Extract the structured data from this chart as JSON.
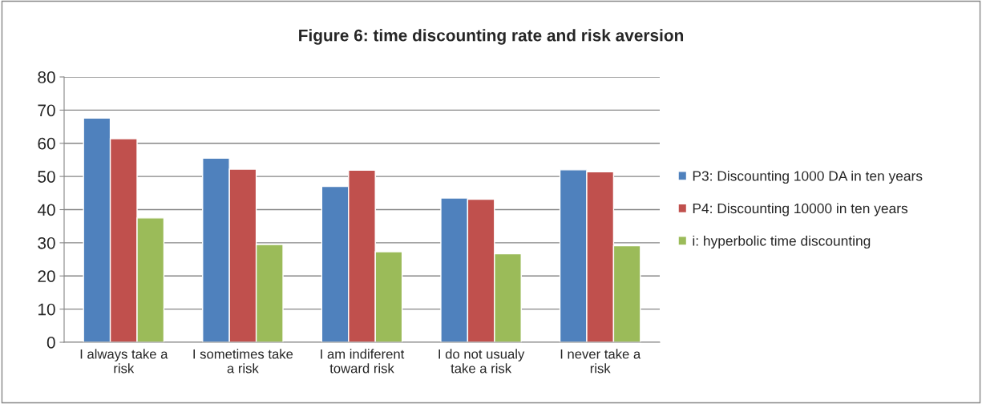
{
  "chart_data": {
    "type": "bar",
    "title": "Figure 6: time discounting rate and risk aversion",
    "categories": [
      "I always take a\nrisk",
      "I sometimes take\na risk",
      "I am indiferent\ntoward risk",
      "I do not usualy\ntake a risk",
      "I never take a\nrisk"
    ],
    "series": [
      {
        "name": "P3: Discounting 1000 DA in ten years",
        "color": "#4f81bd",
        "values": [
          67.6,
          55.5,
          47.0,
          43.5,
          52.0
        ]
      },
      {
        "name": "P4: Discounting 10000 in ten years",
        "color": "#c0504d",
        "values": [
          61.4,
          52.2,
          51.9,
          43.1,
          51.4
        ]
      },
      {
        "name": "i: hyperbolic time discounting",
        "color": "#9bbb59",
        "values": [
          37.5,
          29.5,
          27.3,
          26.7,
          29.1
        ]
      }
    ],
    "ylim": [
      0,
      80
    ],
    "yticks": [
      0,
      10,
      20,
      30,
      40,
      50,
      60,
      70,
      80
    ],
    "grid": "y",
    "legend": "right"
  }
}
